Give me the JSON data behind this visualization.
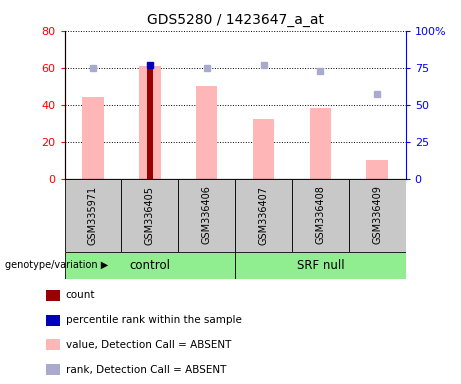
{
  "title": "GDS5280 / 1423647_a_at",
  "samples": [
    "GSM335971",
    "GSM336405",
    "GSM336406",
    "GSM336407",
    "GSM336408",
    "GSM336409"
  ],
  "pink_values": [
    44,
    61,
    50,
    32,
    38,
    10
  ],
  "dark_red_idx": 1,
  "dark_red_value": 61,
  "blue_rank_values": [
    75,
    77,
    75,
    77,
    73,
    57
  ],
  "blue_dark_idx": 1,
  "groups": [
    {
      "label": "control",
      "start": 0,
      "end": 2
    },
    {
      "label": "SRF null",
      "start": 3,
      "end": 5
    }
  ],
  "ylim_left": [
    0,
    80
  ],
  "ylim_right": [
    0,
    100
  ],
  "yticks_left": [
    0,
    20,
    40,
    60,
    80
  ],
  "ytick_labels_left": [
    "0",
    "20",
    "40",
    "60",
    "80"
  ],
  "yticks_right": [
    0,
    25,
    50,
    75,
    100
  ],
  "ytick_labels_right": [
    "0",
    "25",
    "50",
    "75",
    "100%"
  ],
  "color_pink": "#FFB6B6",
  "color_dark_red": "#990000",
  "color_blue_rank": "#AAAACC",
  "color_blue_dark": "#0000BB",
  "group_bg_color": "#90EE90",
  "label_bg_color": "#C8C8C8",
  "legend_items": [
    {
      "color": "#990000",
      "label": "count"
    },
    {
      "color": "#0000BB",
      "label": "percentile rank within the sample"
    },
    {
      "color": "#FFB6B6",
      "label": "value, Detection Call = ABSENT"
    },
    {
      "color": "#AAAACC",
      "label": "rank, Detection Call = ABSENT"
    }
  ]
}
